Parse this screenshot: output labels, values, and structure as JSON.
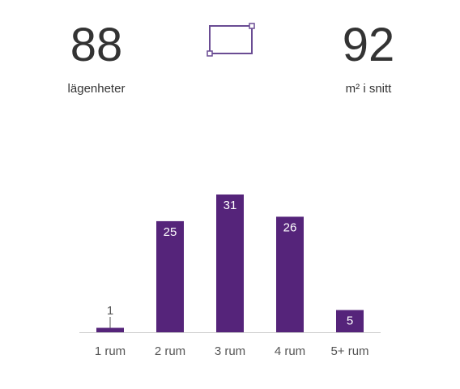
{
  "stats": {
    "left": {
      "value": "88",
      "label": "lägenheter"
    },
    "right": {
      "value": "92",
      "label": "m² i snitt"
    }
  },
  "icon": {
    "name": "area-rectangle-icon",
    "color": "#6a4c93"
  },
  "colors": {
    "bar": "#55247a",
    "axis": "#cccccc",
    "tick_text": "#555555",
    "label_inside": "#ffffff",
    "label_outside": "#555555"
  },
  "chart_data": {
    "type": "bar",
    "categories": [
      "1 rum",
      "2 rum",
      "3 rum",
      "4 rum",
      "5+ rum"
    ],
    "values": [
      1,
      25,
      31,
      26,
      5
    ],
    "title": "",
    "xlabel": "",
    "ylabel": "",
    "ylim": [
      0,
      31
    ],
    "grid": false,
    "legend": "none"
  }
}
